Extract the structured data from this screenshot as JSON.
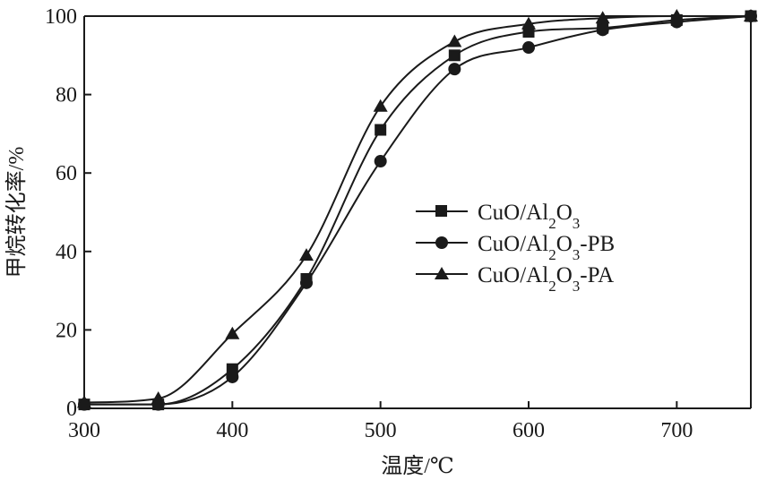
{
  "chart_data": {
    "type": "line",
    "xlabel": "温度/℃",
    "ylabel": "甲烷转化率/%",
    "xlim": [
      300,
      750
    ],
    "ylim": [
      0,
      100
    ],
    "xticks": [
      300,
      400,
      500,
      600,
      700
    ],
    "yticks": [
      0,
      20,
      40,
      60,
      80,
      100
    ],
    "grid": false,
    "legend_position": "center-right",
    "series": [
      {
        "name": "CuO/Al2O3",
        "marker": "square",
        "x": [
          300,
          350,
          400,
          450,
          500,
          550,
          600,
          650,
          700,
          750
        ],
        "y": [
          1,
          1,
          10,
          33,
          71,
          90,
          96,
          97,
          99,
          100
        ]
      },
      {
        "name": "CuO/Al2O3-PB",
        "marker": "circle",
        "x": [
          300,
          350,
          400,
          450,
          500,
          550,
          600,
          650,
          700,
          750
        ],
        "y": [
          1,
          1,
          8,
          32,
          63,
          86.5,
          92,
          96.5,
          98.5,
          100
        ]
      },
      {
        "name": "CuO/Al2O3-PA",
        "marker": "triangle",
        "x": [
          300,
          350,
          400,
          450,
          500,
          550,
          600,
          650,
          700,
          750
        ],
        "y": [
          1.5,
          2.5,
          19,
          39,
          77,
          93.5,
          98,
          99.5,
          100,
          100
        ]
      }
    ]
  }
}
